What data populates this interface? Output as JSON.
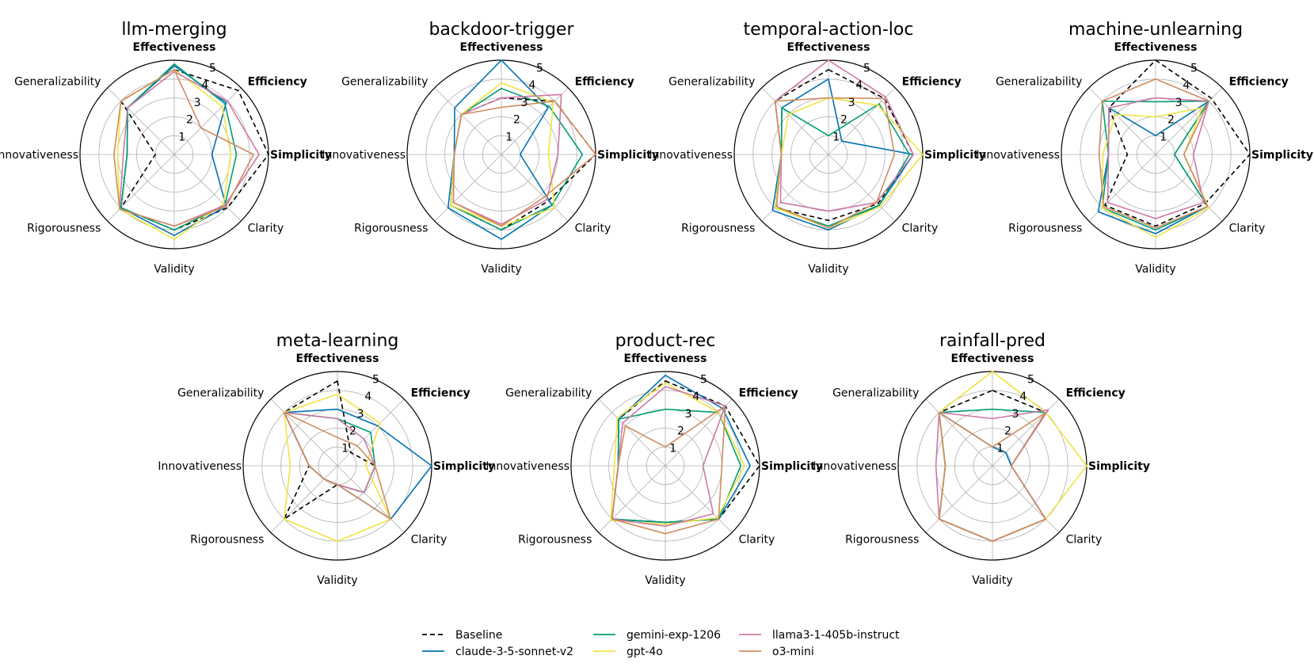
{
  "chart_data": {
    "type": "radar",
    "axes": [
      "Effectiveness",
      "Efficiency",
      "Simplicity",
      "Clarity",
      "Validity",
      "Rigorousness",
      "Innovativeness",
      "Generalizability"
    ],
    "bold_axes": [
      "Effectiveness",
      "Efficiency",
      "Simplicity"
    ],
    "rlim": [
      0,
      5
    ],
    "rticks": [
      "1",
      "2",
      "3",
      "4",
      "5"
    ],
    "grid": true,
    "legend_position": "bottom-center",
    "series_meta": [
      {
        "name": "Baseline",
        "color": "#000000",
        "dash": "dashed"
      },
      {
        "name": "claude-3-5-sonnet-v2",
        "color": "#0072b2",
        "dash": "solid"
      },
      {
        "name": "gemini-exp-1206",
        "color": "#009e73",
        "dash": "solid"
      },
      {
        "name": "gpt-4o",
        "color": "#f0e442",
        "dash": "solid"
      },
      {
        "name": "llama3-1-405b-instruct",
        "color": "#cc79a7",
        "dash": "solid"
      },
      {
        "name": "o3-mini",
        "color": "#d08c60",
        "dash": "solid"
      }
    ],
    "charts": [
      {
        "title": "llm-merging",
        "series": {
          "Baseline": [
            4.5,
            4.8,
            5.0,
            4.0,
            4.0,
            4.0,
            1.0,
            4.0
          ],
          "claude-3-5-sonnet-v2": [
            4.7,
            3.9,
            2.0,
            3.9,
            4.3,
            4.0,
            2.5,
            3.5
          ],
          "gemini-exp-1206": [
            4.8,
            3.8,
            3.3,
            3.8,
            4.0,
            4.0,
            2.5,
            3.5
          ],
          "gpt-4o": [
            4.5,
            3.6,
            3.0,
            3.7,
            4.5,
            4.1,
            3.0,
            4.0
          ],
          "llama3-1-405b-instruct": [
            4.4,
            4.0,
            4.5,
            3.8,
            3.8,
            4.1,
            2.7,
            3.5
          ],
          "o3-mini": [
            4.5,
            2.0,
            4.2,
            3.9,
            3.8,
            4.1,
            3.2,
            4.0
          ]
        }
      },
      {
        "title": "backdoor-trigger",
        "series": {
          "Baseline": [
            3.0,
            4.0,
            5.0,
            3.5,
            4.0,
            3.8,
            2.5,
            3.0
          ],
          "claude-3-5-sonnet-v2": [
            5.0,
            3.5,
            1.0,
            3.8,
            4.5,
            4.0,
            2.5,
            3.5
          ],
          "gemini-exp-1206": [
            3.5,
            3.6,
            4.3,
            3.8,
            4.0,
            3.8,
            2.5,
            3.0
          ],
          "gpt-4o": [
            3.8,
            3.9,
            2.5,
            4.0,
            3.8,
            3.8,
            2.5,
            3.0
          ],
          "llama3-1-405b-instruct": [
            3.0,
            4.5,
            3.0,
            3.4,
            3.7,
            3.6,
            2.5,
            3.0
          ],
          "o3-mini": [
            2.5,
            4.0,
            5.0,
            3.2,
            3.8,
            3.6,
            2.5,
            3.0
          ]
        }
      },
      {
        "title": "temporal-action-loc",
        "series": {
          "Baseline": [
            4.5,
            4.2,
            4.5,
            3.7,
            3.5,
            4.0,
            2.5,
            4.0
          ],
          "claude-3-5-sonnet-v2": [
            4.0,
            1.0,
            4.5,
            3.8,
            4.0,
            4.2,
            2.5,
            3.5
          ],
          "gemini-exp-1206": [
            1.0,
            3.8,
            4.3,
            3.8,
            3.8,
            4.0,
            2.5,
            3.5
          ],
          "gpt-4o": [
            3.0,
            3.7,
            5.0,
            3.9,
            3.9,
            4.0,
            2.5,
            3.0
          ],
          "llama3-1-405b-instruct": [
            5.0,
            4.3,
            4.5,
            3.6,
            3.0,
            3.6,
            2.5,
            4.0
          ],
          "o3-mini": [
            3.0,
            4.2,
            3.5,
            3.6,
            3.9,
            3.9,
            2.5,
            4.0
          ]
        }
      },
      {
        "title": "machine-unlearning",
        "series": {
          "Baseline": [
            5.0,
            4.2,
            5.0,
            3.7,
            3.8,
            3.8,
            1.5,
            3.5
          ],
          "claude-3-5-sonnet-v2": [
            1.0,
            4.0,
            1.0,
            3.9,
            4.2,
            4.3,
            2.5,
            3.5
          ],
          "gemini-exp-1206": [
            2.8,
            4.0,
            1.0,
            3.9,
            4.0,
            4.0,
            2.5,
            4.0
          ],
          "gpt-4o": [
            2.0,
            3.5,
            1.5,
            4.0,
            4.4,
            4.0,
            2.8,
            3.0
          ],
          "llama3-1-405b-instruct": [
            3.0,
            4.0,
            2.0,
            3.6,
            3.4,
            3.6,
            2.5,
            3.5
          ],
          "o3-mini": [
            4.0,
            4.0,
            1.5,
            3.9,
            3.9,
            3.9,
            3.0,
            4.0
          ]
        }
      },
      {
        "title": "meta-learning",
        "series": {
          "Baseline": [
            4.5,
            1.0,
            2.0,
            2.0,
            1.0,
            4.0,
            1.5,
            4.0
          ],
          "claude-3-5-sonnet-v2": [
            3.0,
            3.0,
            5.0,
            4.0,
            1.0,
            1.0,
            1.5,
            4.0
          ],
          "gemini-exp-1206": [
            2.5,
            2.5,
            2.0,
            2.0,
            1.0,
            1.0,
            1.5,
            4.0
          ],
          "gpt-4o": [
            3.8,
            3.2,
            1.5,
            4.0,
            4.0,
            4.0,
            2.5,
            4.0
          ],
          "llama3-1-405b-instruct": [
            2.5,
            2.0,
            2.0,
            2.0,
            1.0,
            1.0,
            1.5,
            4.0
          ],
          "o3-mini": [
            1.5,
            1.5,
            2.0,
            4.0,
            1.0,
            1.0,
            1.5,
            4.0
          ]
        }
      },
      {
        "title": "product-rec",
        "series": {
          "Baseline": [
            4.5,
            4.5,
            5.0,
            4.0,
            3.0,
            4.0,
            2.5,
            3.5
          ],
          "claude-3-5-sonnet-v2": [
            4.8,
            4.3,
            4.5,
            4.0,
            3.0,
            4.0,
            2.5,
            3.5
          ],
          "gemini-exp-1206": [
            3.0,
            4.0,
            4.0,
            4.0,
            3.0,
            4.0,
            2.5,
            3.5
          ],
          "gpt-4o": [
            4.4,
            4.0,
            4.2,
            3.9,
            3.1,
            4.1,
            2.7,
            3.6
          ],
          "llama3-1-405b-instruct": [
            4.2,
            4.5,
            2.0,
            3.6,
            3.2,
            4.0,
            2.5,
            3.2
          ],
          "o3-mini": [
            1.0,
            4.5,
            3.0,
            4.0,
            3.6,
            4.0,
            2.5,
            3.0
          ]
        }
      },
      {
        "title": "rainfall-pred",
        "series": {
          "Baseline": [
            4.0,
            4.0,
            1.0,
            4.0,
            4.0,
            4.0,
            2.5,
            4.0
          ],
          "claude-3-5-sonnet-v2": [
            1.0,
            1.0,
            1.0,
            4.0,
            4.0,
            4.0,
            2.5,
            4.0
          ],
          "gemini-exp-1206": [
            3.0,
            4.0,
            1.0,
            4.0,
            4.0,
            4.0,
            2.5,
            4.0
          ],
          "gpt-4o": [
            5.0,
            4.0,
            5.0,
            4.0,
            4.0,
            4.0,
            2.5,
            4.0
          ],
          "llama3-1-405b-instruct": [
            2.5,
            4.2,
            1.0,
            4.0,
            4.0,
            4.0,
            3.0,
            4.0
          ],
          "o3-mini": [
            1.0,
            4.0,
            1.0,
            4.0,
            4.0,
            4.0,
            2.5,
            4.0
          ]
        }
      }
    ]
  }
}
